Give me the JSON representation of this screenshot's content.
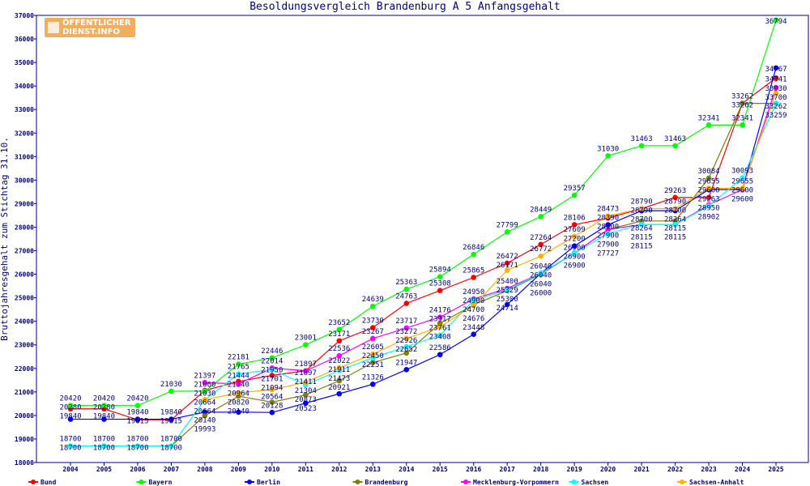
{
  "chart_data": {
    "type": "line",
    "title": "Besoldungsvergleich Brandenburg A 5 Anfangsgehalt",
    "ylabel": "Bruttojahresgehalt zum Stichtag 31.10.",
    "xlabel": "",
    "logo_text": "ÖFFENTLICHER DIENST.INFO",
    "ylim": [
      18000,
      37000
    ],
    "yticks": [
      18000,
      19000,
      20000,
      21000,
      22000,
      23000,
      24000,
      25000,
      26000,
      27000,
      28000,
      29000,
      30000,
      31000,
      32000,
      33000,
      34000,
      35000,
      36000,
      37000
    ],
    "x": [
      "2004",
      "2005",
      "2006",
      "2007",
      "2008",
      "2009",
      "2010",
      "2011",
      "2012",
      "2013",
      "2014",
      "2015",
      "2016",
      "2017",
      "2018",
      "2019",
      "2020",
      "2021",
      "2022",
      "2023",
      "2024",
      "2025"
    ],
    "grid": false,
    "legend_position": "bottom",
    "series": [
      {
        "name": "Bund",
        "color": "#ff0000",
        "values": [
          20280,
          20280,
          19815,
          19815,
          21060,
          21444,
          21701,
          21897,
          23171,
          23730,
          24763,
          25308,
          25865,
          26472,
          27264,
          28106,
          28390,
          28790,
          29263,
          29263,
          33262,
          34341
        ]
      },
      {
        "name": "Bayern",
        "color": "#00ff00",
        "values": [
          20420,
          20420,
          20420,
          21030,
          21030,
          22181,
          22446,
          23001,
          23652,
          24639,
          25363,
          25894,
          26846,
          27799,
          28449,
          29357,
          31030,
          31463,
          31463,
          32341,
          32341,
          36794
        ]
      },
      {
        "name": "Berlin",
        "color": "#0000ff",
        "values": [
          19840,
          19840,
          19840,
          19840,
          20140,
          20140,
          20128,
          20523,
          20921,
          21326,
          21947,
          22586,
          23448,
          24714,
          26040,
          27200,
          28100,
          28700,
          28700,
          29600,
          29600,
          34767
        ]
      },
      {
        "name": "Brandenburg",
        "color": "#808000",
        "values": [
          18700,
          18700,
          18700,
          18700,
          19993,
          20820,
          20564,
          20873,
          21473,
          22251,
          22652,
          23917,
          24700,
          25300,
          26000,
          26900,
          27900,
          28264,
          28264,
          30084,
          33262,
          33262
        ]
      },
      {
        "name": "Mecklenburg-Vorpommern",
        "color": "#ff00ff",
        "values": [
          null,
          null,
          null,
          null,
          21397,
          21340,
          22014,
          21897,
          22536,
          23267,
          23717,
          24176,
          24950,
          25400,
          26040,
          26900,
          27900,
          28115,
          28115,
          28950,
          29600,
          33930
        ]
      },
      {
        "name": "Sachsen",
        "color": "#00ffff",
        "values": [
          18700,
          18700,
          18700,
          18700,
          20664,
          21765,
          21950,
          21304,
          21911,
          22450,
          22926,
          23408,
          24900,
          25329,
          26040,
          26900,
          27727,
          28115,
          28115,
          28902,
          30093,
          33259
        ]
      },
      {
        "name": "Sachsen-Anhalt",
        "color": "#ffb000",
        "values": [
          null,
          null,
          null,
          null,
          20664,
          20964,
          21094,
          21411,
          22022,
          22605,
          23272,
          23761,
          24676,
          26171,
          26772,
          27609,
          28473,
          28790,
          28790,
          29655,
          29655,
          33700
        ]
      }
    ]
  }
}
